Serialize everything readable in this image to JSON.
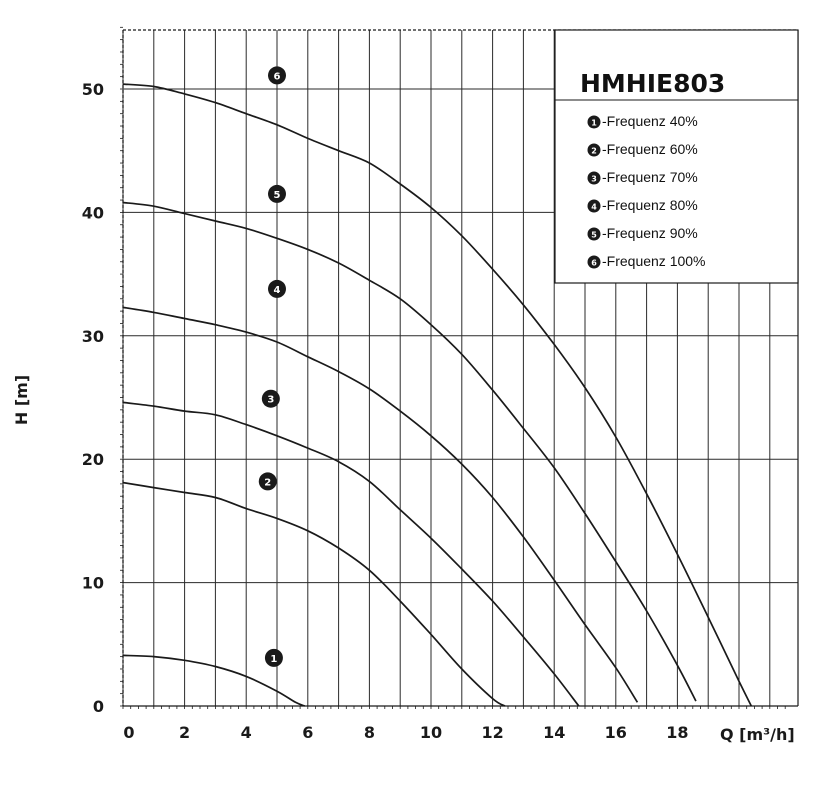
{
  "chart_data": {
    "type": "line",
    "title": "HMHIE803",
    "xlabel": "Q [m³/h]",
    "ylabel": "H [m]",
    "xlim": [
      0,
      22
    ],
    "ylim": [
      0,
      55
    ],
    "x_ticks": [
      "0",
      "2",
      "4",
      "6",
      "8",
      "10",
      "12",
      "14",
      "16",
      "18"
    ],
    "y_ticks": [
      "0",
      "10",
      "20",
      "30",
      "40",
      "50"
    ],
    "grid": true,
    "legend_position": "top-right",
    "series": [
      {
        "name": "Frequenz 40%",
        "marker": "1",
        "marker_at": [
          4.9,
          3.9
        ],
        "points": [
          [
            0,
            4.1
          ],
          [
            1,
            4.0
          ],
          [
            2,
            3.7
          ],
          [
            3,
            3.2
          ],
          [
            4,
            2.4
          ],
          [
            5,
            1.2
          ],
          [
            5.6,
            0.3
          ],
          [
            5.9,
            0
          ]
        ]
      },
      {
        "name": "Frequenz 60%",
        "marker": "2",
        "marker_at": [
          4.7,
          18.2
        ],
        "points": [
          [
            0,
            18.1
          ],
          [
            1,
            17.7
          ],
          [
            2,
            17.3
          ],
          [
            3,
            16.9
          ],
          [
            4,
            16.0
          ],
          [
            5,
            15.2
          ],
          [
            6,
            14.2
          ],
          [
            7,
            12.8
          ],
          [
            8,
            11.0
          ],
          [
            9,
            8.5
          ],
          [
            10,
            5.8
          ],
          [
            11,
            3.0
          ],
          [
            12,
            0.6
          ],
          [
            12.4,
            0
          ]
        ]
      },
      {
        "name": "Frequenz 70%",
        "marker": "3",
        "marker_at": [
          4.8,
          24.9
        ],
        "points": [
          [
            0,
            24.6
          ],
          [
            1,
            24.3
          ],
          [
            2,
            23.9
          ],
          [
            3,
            23.6
          ],
          [
            4,
            22.8
          ],
          [
            5,
            21.9
          ],
          [
            6,
            20.9
          ],
          [
            7,
            19.8
          ],
          [
            8,
            18.2
          ],
          [
            9,
            15.9
          ],
          [
            10,
            13.6
          ],
          [
            11,
            11.1
          ],
          [
            12,
            8.5
          ],
          [
            13,
            5.6
          ],
          [
            14,
            2.6
          ],
          [
            14.8,
            0
          ]
        ]
      },
      {
        "name": "Frequenz 80%",
        "marker": "4",
        "marker_at": [
          5.0,
          33.8
        ],
        "points": [
          [
            0,
            32.3
          ],
          [
            1,
            31.9
          ],
          [
            2,
            31.4
          ],
          [
            3,
            30.9
          ],
          [
            4,
            30.3
          ],
          [
            5,
            29.5
          ],
          [
            6,
            28.3
          ],
          [
            7,
            27.1
          ],
          [
            8,
            25.7
          ],
          [
            9,
            23.9
          ],
          [
            10,
            21.9
          ],
          [
            11,
            19.6
          ],
          [
            12,
            16.9
          ],
          [
            13,
            13.7
          ],
          [
            14,
            10.2
          ],
          [
            15,
            6.6
          ],
          [
            16,
            3.1
          ],
          [
            16.7,
            0.3
          ]
        ]
      },
      {
        "name": "Frequenz 90%",
        "marker": "5",
        "marker_at": [
          5.0,
          41.5
        ],
        "points": [
          [
            0,
            40.8
          ],
          [
            1,
            40.5
          ],
          [
            2,
            39.9
          ],
          [
            3,
            39.3
          ],
          [
            4,
            38.7
          ],
          [
            5,
            37.9
          ],
          [
            6,
            37.0
          ],
          [
            7,
            35.9
          ],
          [
            8,
            34.5
          ],
          [
            9,
            33.0
          ],
          [
            10,
            30.9
          ],
          [
            11,
            28.5
          ],
          [
            12,
            25.6
          ],
          [
            13,
            22.5
          ],
          [
            14,
            19.3
          ],
          [
            15,
            15.6
          ],
          [
            16,
            11.7
          ],
          [
            17,
            7.7
          ],
          [
            18,
            3.3
          ],
          [
            18.6,
            0.4
          ]
        ]
      },
      {
        "name": "Frequenz 100%",
        "marker": "6",
        "marker_at": [
          5.0,
          51.1
        ],
        "points": [
          [
            0,
            50.4
          ],
          [
            1,
            50.2
          ],
          [
            2,
            49.6
          ],
          [
            3,
            48.9
          ],
          [
            4,
            48.0
          ],
          [
            5,
            47.1
          ],
          [
            6,
            46.0
          ],
          [
            7,
            45.0
          ],
          [
            8,
            44.0
          ],
          [
            9,
            42.3
          ],
          [
            10,
            40.4
          ],
          [
            11,
            38.1
          ],
          [
            12,
            35.4
          ],
          [
            13,
            32.5
          ],
          [
            14,
            29.3
          ],
          [
            15,
            25.8
          ],
          [
            16,
            21.8
          ],
          [
            17,
            17.2
          ],
          [
            18,
            12.3
          ],
          [
            19,
            7.2
          ],
          [
            20,
            2.0
          ],
          [
            20.4,
            0
          ]
        ]
      }
    ]
  }
}
